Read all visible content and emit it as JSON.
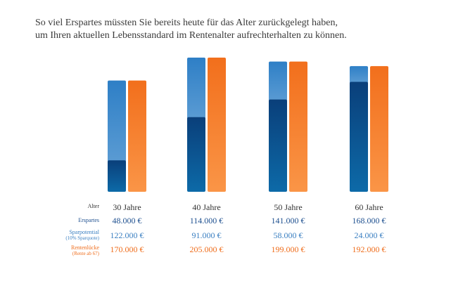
{
  "title": {
    "line1": "So viel Erspartes müssten Sie bereits heute für das Alter zurückgelegt haben,",
    "line2": "um Ihren aktuellen Lebensstandard im Rentenalter aufrechterhalten zu können."
  },
  "rows": {
    "alter": "Alter",
    "erspartes": "Erspartes",
    "sparpotential": "Sparpotential",
    "sparpotential_sub": "(10% Sparquote)",
    "rentenluecke": "Rentenlücke",
    "rentenluecke_sub": "(Rente ab 67)"
  },
  "columns": [
    {
      "alter": "30 Jahre",
      "erspartes": "48.000 €",
      "sparpotential": "122.000 €",
      "rentenluecke": "170.000 €"
    },
    {
      "alter": "40 Jahre",
      "erspartes": "114.000 €",
      "sparpotential": "91.000 €",
      "rentenluecke": "205.000 €"
    },
    {
      "alter": "50 Jahre",
      "erspartes": "141.000 €",
      "sparpotential": "58.000 €",
      "rentenluecke": "199.000 €"
    },
    {
      "alter": "60 Jahre",
      "erspartes": "168.000 €",
      "sparpotential": "24.000 €",
      "rentenluecke": "192.000 €"
    }
  ],
  "colors": {
    "erspartes": "#0b4f8c",
    "sparpotential": "#3a87c8",
    "rentenluecke": "#f07a2a",
    "label_dark_blue": "#1d4f8f",
    "label_light_blue": "#3a7fc1",
    "label_orange": "#ef6d1c",
    "text": "#333333"
  },
  "chart_data": {
    "type": "bar",
    "stacked_pairs": true,
    "categories": [
      "30 Jahre",
      "40 Jahre",
      "50 Jahre",
      "60 Jahre"
    ],
    "series": [
      {
        "name": "Erspartes",
        "stack": "left",
        "values": [
          48000,
          114000,
          141000,
          168000
        ]
      },
      {
        "name": "Sparpotential",
        "stack": "left",
        "values": [
          122000,
          91000,
          58000,
          24000
        ]
      },
      {
        "name": "Rentenlücke",
        "stack": "right",
        "values": [
          170000,
          205000,
          199000,
          192000
        ]
      }
    ],
    "ylim": [
      0,
      205000
    ],
    "grid": false,
    "legend": "none"
  }
}
